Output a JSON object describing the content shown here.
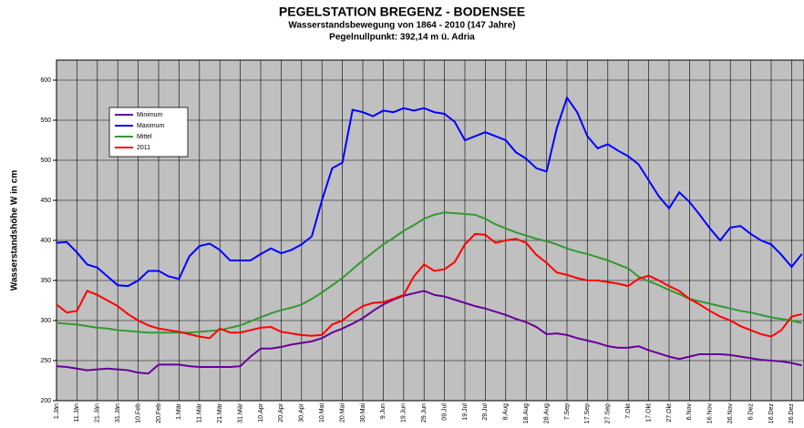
{
  "chart_data": {
    "type": "line",
    "title": "PEGELSTATION BREGENZ - BODENSEE",
    "subtitle": "Wasserstandsbewegung von 1864 - 2010 (147 Jahre)",
    "subtitle2": "Pegelnullpunkt: 392,14 m ü. Adria",
    "y_label": "Wasserstandshöhe W in cm",
    "categories": [
      "1.Jän",
      null,
      "11.Jän",
      null,
      "21.Jän",
      null,
      "31.Jän",
      null,
      "10.Feb",
      null,
      "20.Feb",
      null,
      "1.Mär",
      null,
      "11.Mär",
      null,
      "21.Mär",
      null,
      "31.Mär",
      null,
      "10.Apr",
      null,
      "20.Apr",
      null,
      "30.Apr",
      null,
      "10.Mai",
      null,
      "20.Mai",
      null,
      "30.Mai",
      null,
      "9.Jun",
      null,
      "19.Jun",
      null,
      "29.Jun",
      null,
      "09.Jul",
      null,
      "19.Jul",
      null,
      "29.Jul",
      null,
      "8.Aug",
      null,
      "18.Aug",
      null,
      "28.Aug",
      null,
      "7.Sep",
      null,
      "17.Sep",
      null,
      "27.Sep",
      null,
      "7.Okt",
      null,
      "17.Okt",
      null,
      "27.Okt",
      null,
      "6.Nov",
      null,
      "16.Nov",
      null,
      "26.Nov",
      null,
      "6.Dez",
      null,
      "16.Dez",
      null,
      "26.Dez",
      null
    ],
    "series": [
      {
        "name": "Minimum",
        "color": "#660099",
        "values": [
          243,
          242,
          240,
          238,
          239,
          240,
          239,
          238,
          235,
          234,
          245,
          245,
          245,
          243,
          242,
          242,
          242,
          242,
          243,
          255,
          265,
          265,
          267,
          270,
          272,
          274,
          278,
          285,
          290,
          296,
          303,
          312,
          320,
          326,
          331,
          334,
          337,
          332,
          330,
          326,
          322,
          318,
          315,
          311,
          307,
          302,
          298,
          292,
          283,
          284,
          282,
          278,
          275,
          272,
          268,
          266,
          266,
          268,
          263,
          259,
          255,
          252,
          255,
          258,
          258,
          258,
          257,
          255,
          253,
          251,
          250,
          249,
          247,
          244
        ]
      },
      {
        "name": "Maximum",
        "color": "#0000ff",
        "values": [
          397,
          398,
          385,
          370,
          366,
          355,
          344,
          343,
          350,
          362,
          362,
          355,
          352,
          380,
          393,
          396,
          388,
          375,
          375,
          375,
          383,
          390,
          384,
          388,
          395,
          405,
          450,
          490,
          497,
          563,
          560,
          555,
          562,
          560,
          565,
          562,
          565,
          560,
          558,
          548,
          525,
          530,
          535,
          530,
          525,
          510,
          502,
          490,
          486,
          540,
          578,
          560,
          530,
          515,
          520,
          512,
          505,
          495,
          475,
          455,
          440,
          460,
          448,
          432,
          415,
          400,
          416,
          418,
          408,
          400,
          395,
          382,
          367,
          383
        ]
      },
      {
        "name": "Mittel",
        "color": "#339933",
        "values": [
          297,
          296,
          295,
          293,
          291,
          290,
          288,
          287,
          286,
          285,
          285,
          285,
          285,
          285,
          286,
          287,
          288,
          291,
          294,
          299,
          304,
          309,
          313,
          316,
          320,
          327,
          335,
          344,
          353,
          364,
          375,
          385,
          395,
          403,
          412,
          419,
          427,
          432,
          435,
          434,
          433,
          432,
          427,
          420,
          415,
          410,
          406,
          402,
          399,
          395,
          390,
          386,
          383,
          379,
          375,
          370,
          365,
          355,
          349,
          344,
          338,
          333,
          327,
          324,
          321,
          318,
          315,
          312,
          310,
          307,
          304,
          302,
          300,
          297
        ]
      },
      {
        "name": "2011",
        "color": "#ff0000",
        "values": [
          320,
          310,
          312,
          337,
          332,
          325,
          318,
          308,
          300,
          294,
          290,
          288,
          286,
          283,
          280,
          278,
          290,
          285,
          285,
          288,
          291,
          292,
          286,
          284,
          282,
          281,
          282,
          295,
          300,
          310,
          318,
          322,
          323,
          327,
          332,
          355,
          370,
          362,
          364,
          373,
          395,
          408,
          407,
          397,
          400,
          402,
          397,
          382,
          372,
          360,
          357,
          353,
          350,
          350,
          348,
          346,
          343,
          352,
          356,
          350,
          343,
          337,
          327,
          320,
          312,
          305,
          300,
          293,
          288,
          283,
          280,
          288,
          305,
          308
        ]
      }
    ],
    "ylim": [
      200,
      625
    ],
    "yticks": [
      200,
      250,
      300,
      350,
      400,
      450,
      500,
      550,
      600
    ],
    "grid": true,
    "background": "#c0c0c0",
    "legend": "upper left"
  }
}
